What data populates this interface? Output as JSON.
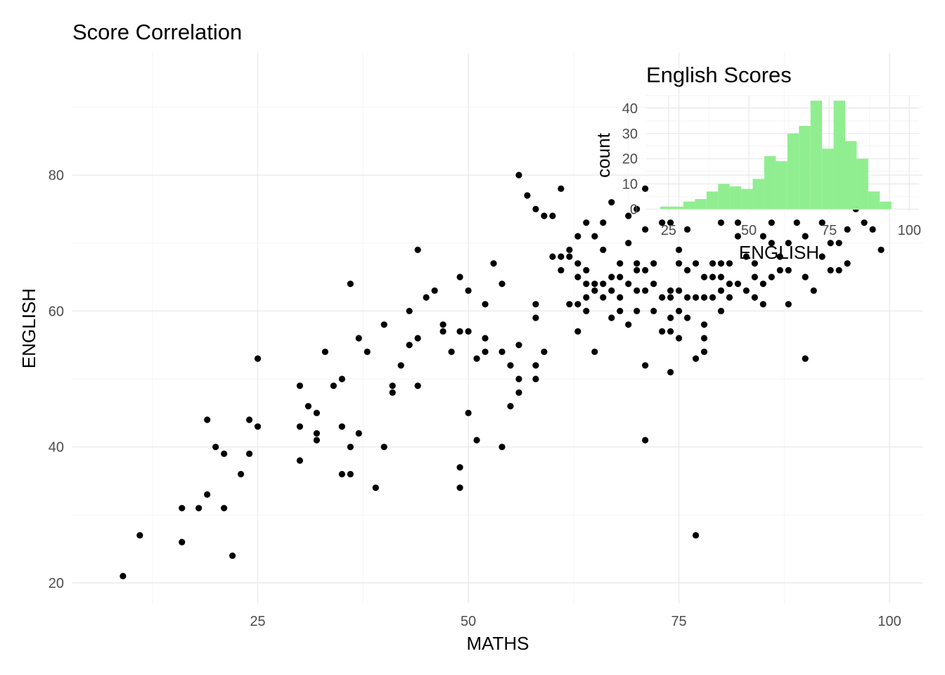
{
  "chart_data": [
    {
      "type": "scatter",
      "title": "Score Correlation",
      "xlabel": "MATHS",
      "ylabel": "ENGLISH",
      "xlim": [
        3,
        104
      ],
      "ylim": [
        17,
        98
      ],
      "xticks": [
        25,
        50,
        75,
        100
      ],
      "yticks": [
        20,
        40,
        60,
        80
      ],
      "grid": true,
      "point_color": "#000000",
      "x": [
        9,
        11,
        16,
        16,
        18,
        19,
        19,
        20,
        21,
        21,
        22,
        23,
        24,
        24,
        25,
        25,
        30,
        30,
        30,
        31,
        32,
        32,
        32,
        33,
        34,
        35,
        35,
        35,
        36,
        36,
        36,
        37,
        37,
        38,
        39,
        40,
        40,
        41,
        41,
        42,
        43,
        43,
        44,
        44,
        44,
        45,
        46,
        47,
        47,
        48,
        49,
        49,
        49,
        49,
        50,
        50,
        50,
        51,
        51,
        52,
        52,
        52,
        53,
        54,
        54,
        54,
        55,
        55,
        56,
        56,
        56,
        56,
        57,
        58,
        58,
        58,
        58,
        58,
        59,
        59,
        60,
        60,
        61,
        61,
        61,
        62,
        62,
        62,
        63,
        63,
        63,
        63,
        63,
        64,
        64,
        64,
        64,
        64,
        65,
        65,
        65,
        65,
        66,
        66,
        66,
        66,
        67,
        67,
        67,
        67,
        68,
        68,
        68,
        68,
        69,
        69,
        69,
        69,
        70,
        70,
        70,
        70,
        70,
        71,
        71,
        71,
        71,
        71,
        71,
        72,
        72,
        72,
        73,
        73,
        73,
        74,
        74,
        74,
        74,
        74,
        74,
        75,
        75,
        75,
        75,
        75,
        76,
        76,
        76,
        76,
        77,
        77,
        77,
        77,
        78,
        78,
        78,
        78,
        78,
        79,
        79,
        79,
        80,
        80,
        80,
        80,
        80,
        81,
        81,
        81,
        82,
        82,
        82,
        83,
        83,
        84,
        84,
        84,
        85,
        85,
        85,
        86,
        86,
        86,
        87,
        87,
        88,
        88,
        88,
        89,
        90,
        90,
        90,
        91,
        92,
        92,
        93,
        93,
        94,
        94,
        95,
        95,
        96,
        97,
        97,
        98,
        99
      ],
      "y": [
        21,
        27,
        26,
        31,
        31,
        33,
        44,
        40,
        31,
        39,
        24,
        36,
        39,
        44,
        43,
        53,
        38,
        43,
        49,
        46,
        41,
        42,
        45,
        54,
        49,
        36,
        43,
        50,
        36,
        40,
        64,
        42,
        56,
        54,
        34,
        40,
        58,
        48,
        49,
        52,
        55,
        60,
        49,
        56,
        69,
        62,
        63,
        57,
        58,
        54,
        34,
        37,
        57,
        65,
        45,
        57,
        63,
        41,
        53,
        54,
        56,
        61,
        67,
        40,
        54,
        64,
        46,
        52,
        48,
        50,
        55,
        80,
        77,
        50,
        52,
        59,
        61,
        75,
        54,
        74,
        68,
        74,
        66,
        68,
        78,
        61,
        68,
        69,
        57,
        61,
        65,
        67,
        71,
        60,
        62,
        64,
        66,
        73,
        54,
        63,
        64,
        71,
        62,
        64,
        69,
        73,
        59,
        63,
        65,
        76,
        60,
        62,
        65,
        67,
        58,
        64,
        70,
        74,
        60,
        63,
        66,
        67,
        75,
        41,
        52,
        63,
        66,
        72,
        78,
        60,
        64,
        67,
        57,
        62,
        73,
        51,
        57,
        59,
        62,
        63,
        73,
        56,
        60,
        63,
        67,
        69,
        59,
        62,
        66,
        72,
        27,
        53,
        62,
        67,
        54,
        56,
        58,
        62,
        65,
        62,
        65,
        67,
        60,
        63,
        65,
        67,
        73,
        62,
        64,
        67,
        64,
        71,
        73,
        63,
        68,
        62,
        65,
        67,
        61,
        64,
        71,
        65,
        70,
        73,
        66,
        68,
        61,
        66,
        70,
        73,
        53,
        65,
        71,
        63,
        68,
        73,
        66,
        70,
        66,
        70,
        67,
        72,
        75,
        73,
        78,
        72,
        69
      ]
    },
    {
      "type": "bar",
      "title": "English Scores",
      "xlabel": "ENGLISH",
      "ylabel": "count",
      "fill_color": "#90ee90",
      "xlim": [
        18,
        103
      ],
      "ylim": [
        -1,
        45
      ],
      "xticks": [
        25,
        50,
        75,
        100
      ],
      "yticks": [
        0,
        10,
        20,
        30,
        40
      ],
      "grid": true,
      "legend": "none",
      "bin_width": 3.6,
      "bin_starts": [
        22.4,
        26.0,
        29.6,
        33.2,
        36.8,
        40.4,
        44.0,
        47.6,
        51.2,
        54.8,
        58.4,
        62.0,
        65.6,
        69.2,
        72.8,
        76.4,
        80.0,
        83.6,
        87.2,
        90.8,
        94.4
      ],
      "counts": [
        1,
        1,
        3,
        4,
        7,
        10,
        9,
        8,
        12,
        21,
        19,
        30,
        33,
        43,
        24,
        43,
        27,
        20,
        7,
        3,
        0
      ]
    }
  ]
}
